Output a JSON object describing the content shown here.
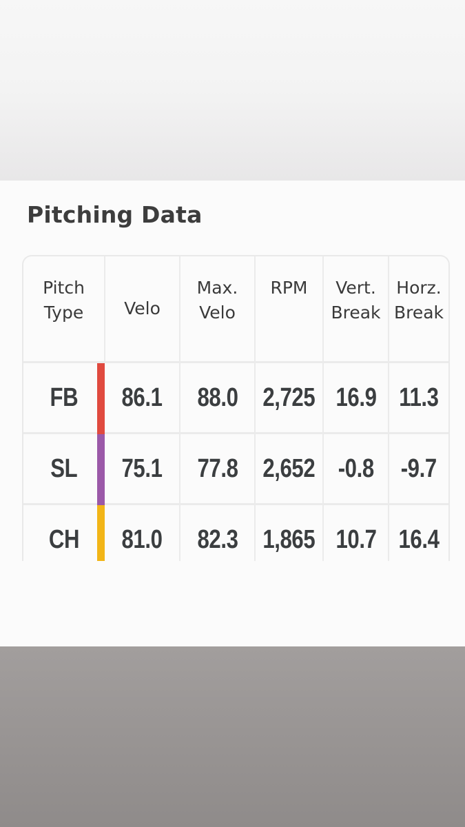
{
  "card": {
    "title": "Pitching Data"
  },
  "table": {
    "headers": [
      {
        "line1": "Pitch",
        "line2": "Type"
      },
      {
        "line1": "Velo",
        "line2": ""
      },
      {
        "line1": "Max.",
        "line2": "Velo"
      },
      {
        "line1": "RPM",
        "line2": ""
      },
      {
        "line1": "Vert.",
        "line2": "Break"
      },
      {
        "line1": "Horz.",
        "line2": "Break"
      }
    ],
    "rows": [
      {
        "type": "FB",
        "color": "#e04a3f",
        "velo": "86.1",
        "max_velo": "88.0",
        "rpm": "2,725",
        "vert_break": "16.9",
        "horz_break": "11.3"
      },
      {
        "type": "SL",
        "color": "#9b59a8",
        "velo": "75.1",
        "max_velo": "77.8",
        "rpm": "2,652",
        "vert_break": "-0.8",
        "horz_break": "-9.7"
      },
      {
        "type": "CH",
        "color": "#f2b517",
        "velo": "81.0",
        "max_velo": "82.3",
        "rpm": "1,865",
        "vert_break": "10.7",
        "horz_break": "16.4"
      }
    ]
  },
  "colors": {
    "background_top": "#f4f4f4",
    "card": "#fbfbfb",
    "background_bottom": "#9a9695",
    "grid": "#ebebeb",
    "text": "#3b3e40"
  }
}
